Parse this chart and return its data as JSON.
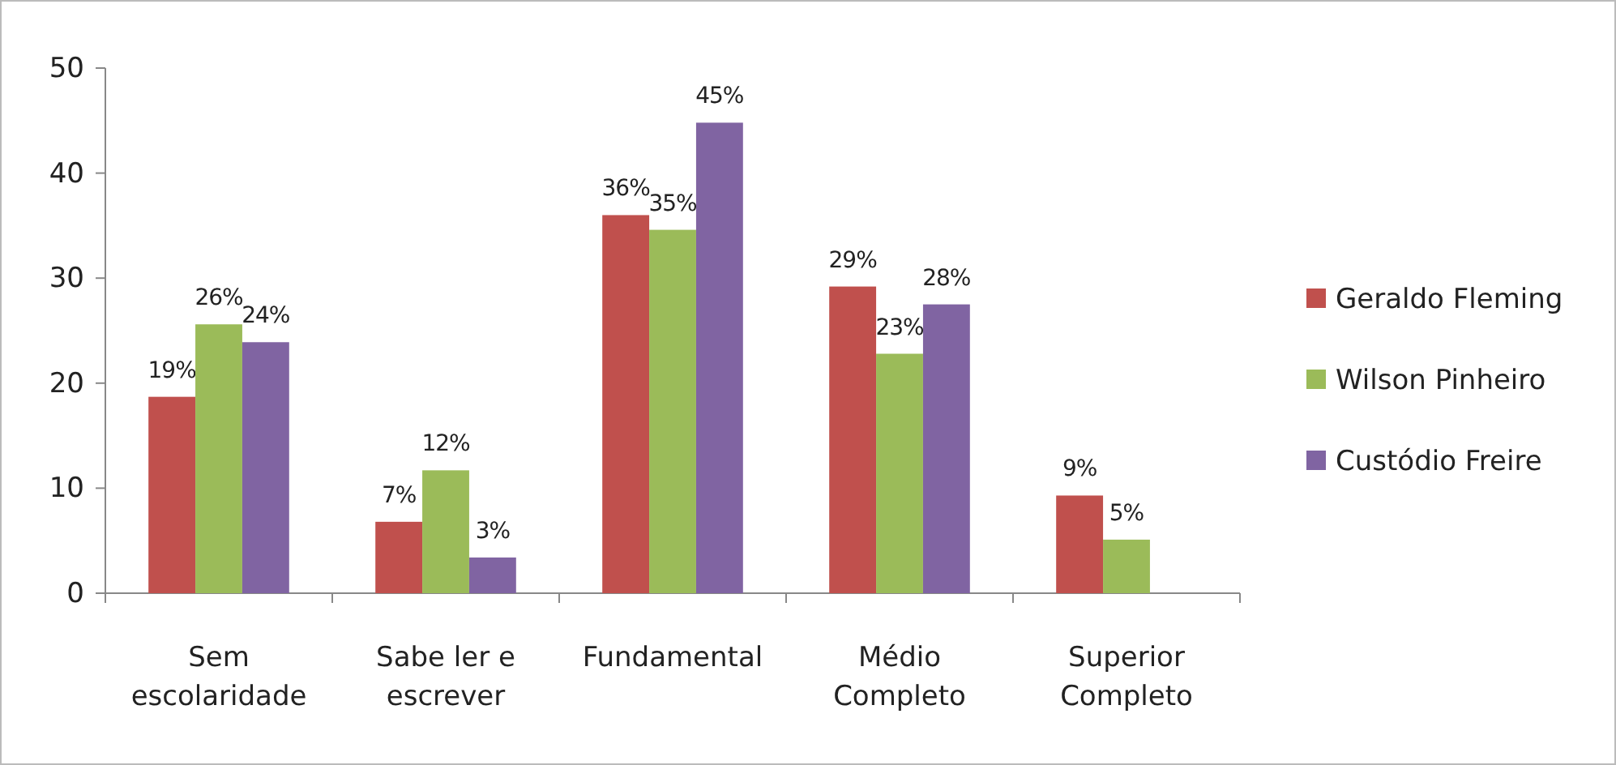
{
  "chart_data": {
    "type": "bar",
    "categories": [
      "Sem escolaridade",
      "Sabe ler e escrever",
      "Fundamental",
      "Médio Completo",
      "Superior Completo"
    ],
    "series": [
      {
        "name": "Geraldo Fleming",
        "color": "#c0504d",
        "values": [
          18.7,
          6.8,
          36.0,
          29.2,
          9.3
        ],
        "value_labels": [
          "19%",
          "7%",
          "36%",
          "29%",
          "9%"
        ]
      },
      {
        "name": "Wilson Pinheiro",
        "color": "#9bbb59",
        "values": [
          25.6,
          11.7,
          34.6,
          22.8,
          5.1
        ],
        "value_labels": [
          "26%",
          "12%",
          "35%",
          "23%",
          "5%"
        ]
      },
      {
        "name": "Custódio Freire",
        "color": "#8064a2",
        "values": [
          23.9,
          3.4,
          44.8,
          27.5,
          null
        ],
        "value_labels": [
          "24%",
          "3%",
          "45%",
          "28%",
          null
        ]
      }
    ],
    "ylim": [
      0,
      50
    ],
    "yticks": [
      0,
      10,
      20,
      30,
      40,
      50
    ],
    "grid": false,
    "legend": "right"
  }
}
